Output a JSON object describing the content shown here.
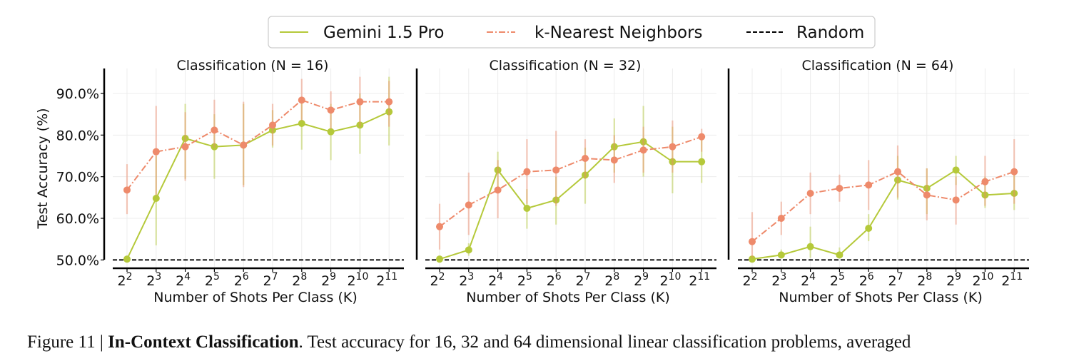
{
  "legend": {
    "entries": [
      {
        "label": "Gemini 1.5 Pro",
        "style": "solid",
        "color": "#b5c93a"
      },
      {
        "label": "k-Nearest Neighbors",
        "style": "dashdot",
        "color": "#ee8a6b"
      },
      {
        "label": "Random",
        "style": "dashed",
        "color": "#000000"
      }
    ],
    "placement": "top-center"
  },
  "caption": {
    "prefix": "Figure 11 | ",
    "bold": "In-Context Classification",
    "text": ". Test accuracy for 16, 32 and 64 dimensional linear classification problems, averaged"
  },
  "chart_data": [
    {
      "type": "line",
      "title": "Classification (N = 16)",
      "xlabel": "Number of Shots Per Class (K)",
      "ylabel": "Test Accuracy (%)",
      "x": [
        2,
        3,
        4,
        5,
        6,
        7,
        8,
        9,
        10,
        11
      ],
      "x_tick_base": "2",
      "y_ticks": [
        "50.0%",
        "60.0%",
        "70.0%",
        "80.0%",
        "90.0%"
      ],
      "ylim": [
        48,
        96
      ],
      "grid": true,
      "random_baseline": 50,
      "series": [
        {
          "name": "Gemini 1.5 Pro",
          "color": "#b5c93a",
          "values": [
            50.2,
            64.8,
            79.2,
            77.2,
            77.6,
            81.2,
            82.8,
            80.8,
            82.4,
            85.6
          ],
          "err_low": [
            50,
            53.5,
            69.5,
            69.5,
            68,
            77,
            76.5,
            74,
            75.5,
            77.5
          ],
          "err_high": [
            50.5,
            75,
            87.5,
            85,
            87.5,
            86,
            89,
            87.5,
            90,
            94
          ]
        },
        {
          "name": "k-Nearest Neighbors",
          "color": "#ee8a6b",
          "values": [
            66.8,
            76.0,
            77.2,
            81.2,
            77.6,
            82.4,
            88.4,
            86.0,
            88.0,
            88.0
          ],
          "err_low": [
            61,
            65.5,
            69,
            77,
            67.5,
            77.5,
            83.5,
            81.5,
            82,
            82
          ],
          "err_high": [
            73,
            87,
            85.5,
            88.5,
            88,
            87.5,
            93.5,
            90.5,
            94,
            93
          ]
        }
      ]
    },
    {
      "type": "line",
      "title": "Classification (N = 32)",
      "xlabel": "Number of Shots Per Class (K)",
      "ylabel": "",
      "x": [
        2,
        3,
        4,
        5,
        6,
        7,
        8,
        9,
        10,
        11
      ],
      "x_tick_base": "2",
      "ylim": [
        48,
        96
      ],
      "grid": true,
      "random_baseline": 50,
      "series": [
        {
          "name": "Gemini 1.5 Pro",
          "color": "#b5c93a",
          "values": [
            50.2,
            52.4,
            71.6,
            62.4,
            64.4,
            70.4,
            77.2,
            78.4,
            73.6,
            73.6
          ],
          "err_low": [
            50,
            51,
            67,
            57.5,
            58.5,
            63.5,
            71,
            70,
            66,
            68.5
          ],
          "err_high": [
            50.5,
            54,
            76,
            67,
            70,
            77,
            84,
            87,
            82,
            79
          ]
        },
        {
          "name": "k-Nearest Neighbors",
          "color": "#ee8a6b",
          "values": [
            58.0,
            63.2,
            66.8,
            71.2,
            71.6,
            74.4,
            74.0,
            76.4,
            77.2,
            79.6
          ],
          "err_low": [
            52.5,
            56,
            60,
            63.5,
            63,
            69.5,
            68.5,
            71,
            71,
            76
          ],
          "err_high": [
            63.5,
            71,
            74,
            79,
            81,
            79,
            80,
            82,
            83.5,
            81.5
          ]
        }
      ]
    },
    {
      "type": "line",
      "title": "Classification (N = 64)",
      "xlabel": "Number of Shots Per Class (K)",
      "ylabel": "",
      "x": [
        2,
        3,
        4,
        5,
        6,
        7,
        8,
        9,
        10,
        11
      ],
      "x_tick_base": "2",
      "ylim": [
        48,
        96
      ],
      "grid": true,
      "random_baseline": 50,
      "series": [
        {
          "name": "Gemini 1.5 Pro",
          "color": "#b5c93a",
          "values": [
            50.2,
            51.2,
            53.2,
            51.2,
            57.6,
            69.2,
            67.2,
            71.6,
            65.6,
            66.0
          ],
          "err_low": [
            50,
            50.5,
            50.5,
            50.5,
            54.5,
            64.5,
            61,
            68,
            62.5,
            62
          ],
          "err_high": [
            50.5,
            52.5,
            58,
            53,
            61,
            75,
            72,
            75,
            70,
            71
          ]
        },
        {
          "name": "k-Nearest Neighbors",
          "color": "#ee8a6b",
          "values": [
            54.4,
            60.0,
            66.0,
            67.2,
            68.0,
            71.2,
            65.6,
            64.4,
            68.8,
            71.2
          ],
          "err_low": [
            50.5,
            56,
            61,
            64,
            62,
            65,
            59.5,
            58.5,
            63,
            63.5
          ],
          "err_high": [
            61.5,
            64,
            71,
            70.5,
            74,
            77.5,
            72,
            70,
            75,
            79
          ]
        }
      ]
    }
  ]
}
